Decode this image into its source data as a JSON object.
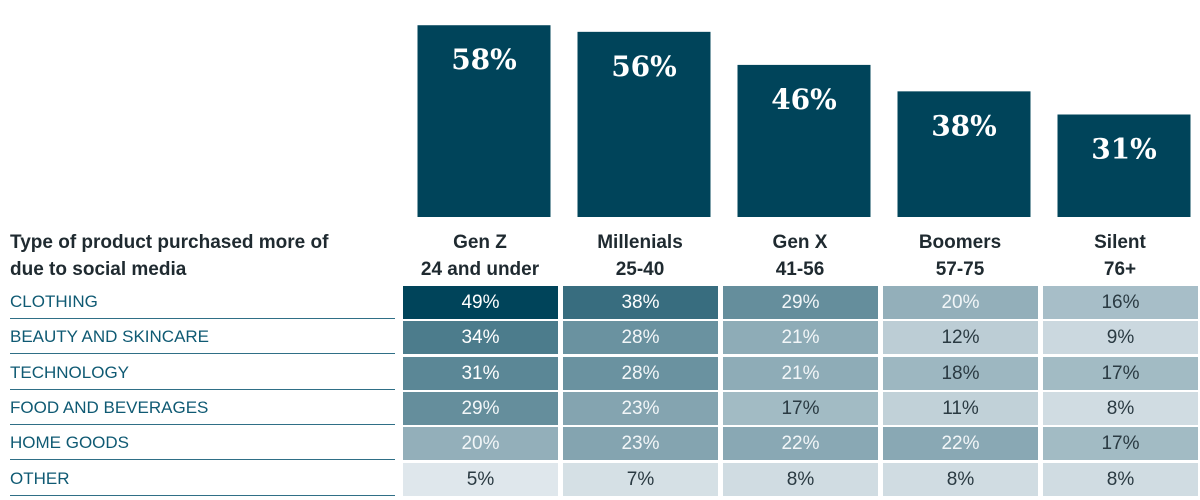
{
  "chart_data": {
    "type": "bar",
    "categories": [
      "Gen Z",
      "Millenials",
      "Gen X",
      "Boomers",
      "Silent"
    ],
    "values": [
      58,
      56,
      46,
      38,
      31
    ],
    "value_labels": [
      "58%",
      "56%",
      "46%",
      "38%",
      "31%"
    ],
    "ylim": [
      0,
      62
    ],
    "colors": {
      "bar": "#00445a"
    }
  },
  "table": {
    "title_line1": "Type of product purchased more of",
    "title_line2": "due to social media",
    "columns": [
      {
        "name": "Gen Z",
        "range": "24 and under"
      },
      {
        "name": "Millenials",
        "range": "25-40"
      },
      {
        "name": "Gen X",
        "range": "41-56"
      },
      {
        "name": "Boomers",
        "range": "57-75"
      },
      {
        "name": "Silent",
        "range": "76+"
      }
    ],
    "rows": [
      {
        "label": "CLOTHING",
        "cells": [
          "49%",
          "38%",
          "29%",
          "20%",
          "16%"
        ],
        "values": [
          49,
          38,
          29,
          20,
          16
        ]
      },
      {
        "label": "BEAUTY AND SKINCARE",
        "cells": [
          "34%",
          "28%",
          "21%",
          "12%",
          "9%"
        ],
        "values": [
          34,
          28,
          21,
          12,
          9
        ]
      },
      {
        "label": "TECHNOLOGY",
        "cells": [
          "31%",
          "28%",
          "21%",
          "18%",
          "17%"
        ],
        "values": [
          31,
          28,
          21,
          18,
          17
        ]
      },
      {
        "label": "FOOD AND BEVERAGES",
        "cells": [
          "29%",
          "23%",
          "17%",
          "11%",
          "8%"
        ],
        "values": [
          29,
          23,
          17,
          11,
          8
        ]
      },
      {
        "label": "HOME GOODS",
        "cells": [
          "20%",
          "23%",
          "22%",
          "22%",
          "17%"
        ],
        "values": [
          20,
          23,
          22,
          22,
          17
        ]
      },
      {
        "label": "OTHER",
        "cells": [
          "5%",
          "7%",
          "8%",
          "8%",
          "8%"
        ],
        "values": [
          5,
          7,
          8,
          8,
          8
        ]
      }
    ],
    "heat_colors": {
      "low": "#dfe7ec",
      "high": "#00445a"
    }
  }
}
